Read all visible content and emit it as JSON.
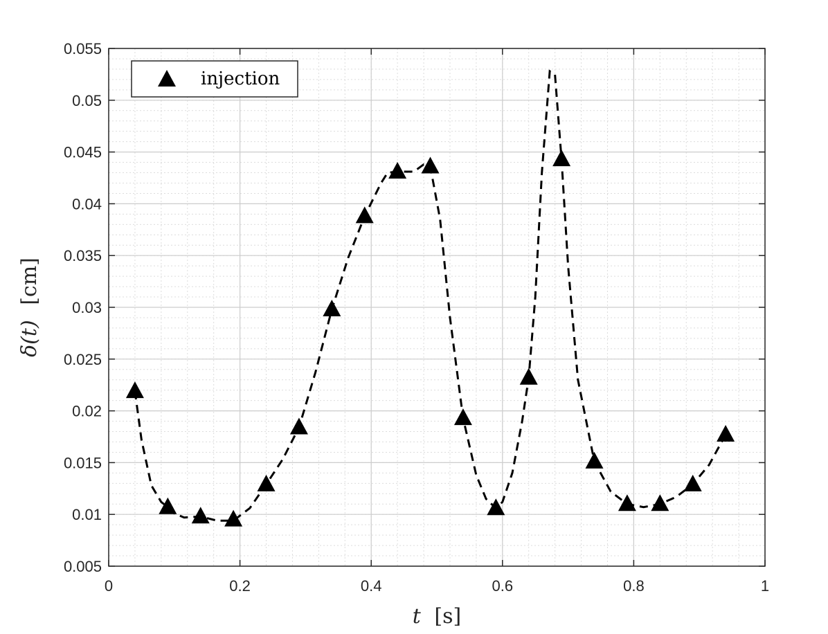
{
  "chart_data": {
    "type": "line",
    "xlabel_var": "t",
    "xlabel_unit": "[s]",
    "ylabel_var": "δ(t)",
    "ylabel_unit": "[cm]",
    "xlim": [
      0,
      1
    ],
    "ylim": [
      0.005,
      0.055
    ],
    "xticks": [
      0,
      0.2,
      0.4,
      0.6,
      0.8,
      1
    ],
    "xtick_labels": [
      "0",
      "0.2",
      "0.4",
      "0.6",
      "0.8",
      "1"
    ],
    "yticks": [
      0.005,
      0.01,
      0.015,
      0.02,
      0.025,
      0.03,
      0.035,
      0.04,
      0.045,
      0.05,
      0.055
    ],
    "ytick_labels": [
      "0.005",
      "0.01",
      "0.015",
      "0.02",
      "0.025",
      "0.03",
      "0.035",
      "0.04",
      "0.045",
      "0.05",
      "0.055"
    ],
    "grid": true,
    "minor_grid": true,
    "legend_position": "top-left",
    "series": [
      {
        "name": "injection",
        "marker": "triangle",
        "color": "#000000",
        "x": [
          0.04,
          0.09,
          0.14,
          0.19,
          0.24,
          0.29,
          0.34,
          0.39,
          0.44,
          0.49,
          0.54,
          0.59,
          0.64,
          0.69,
          0.74,
          0.79,
          0.84,
          0.89,
          0.94
        ],
        "y": [
          0.0219,
          0.0107,
          0.0098,
          0.0095,
          0.0129,
          0.0184,
          0.0298,
          0.0388,
          0.0431,
          0.0436,
          0.0193,
          0.0106,
          0.0232,
          0.0443,
          0.0151,
          0.011,
          0.011,
          0.0129,
          0.0177
        ]
      }
    ],
    "fit_curve": {
      "style": "dashed",
      "color": "#000000",
      "x": [
        0.04,
        0.05,
        0.065,
        0.08,
        0.09,
        0.1,
        0.115,
        0.14,
        0.165,
        0.19,
        0.215,
        0.24,
        0.265,
        0.29,
        0.315,
        0.34,
        0.365,
        0.39,
        0.415,
        0.425,
        0.44,
        0.465,
        0.48,
        0.49,
        0.505,
        0.52,
        0.54,
        0.56,
        0.575,
        0.59,
        0.6,
        0.615,
        0.63,
        0.64,
        0.65,
        0.66,
        0.672,
        0.68,
        0.69,
        0.7,
        0.715,
        0.74,
        0.765,
        0.79,
        0.815,
        0.84,
        0.865,
        0.89,
        0.915,
        0.94
      ],
      "y": [
        0.0219,
        0.0172,
        0.0128,
        0.0112,
        0.0107,
        0.0101,
        0.0097,
        0.0098,
        0.0094,
        0.0094,
        0.0106,
        0.0129,
        0.0153,
        0.0184,
        0.0237,
        0.0298,
        0.0348,
        0.0388,
        0.042,
        0.043,
        0.0431,
        0.0431,
        0.0438,
        0.0436,
        0.0385,
        0.029,
        0.0193,
        0.0138,
        0.0115,
        0.0106,
        0.0112,
        0.014,
        0.019,
        0.0232,
        0.031,
        0.043,
        0.0528,
        0.0525,
        0.0443,
        0.034,
        0.023,
        0.0151,
        0.0122,
        0.011,
        0.0107,
        0.011,
        0.0117,
        0.0129,
        0.0148,
        0.0177
      ]
    }
  }
}
